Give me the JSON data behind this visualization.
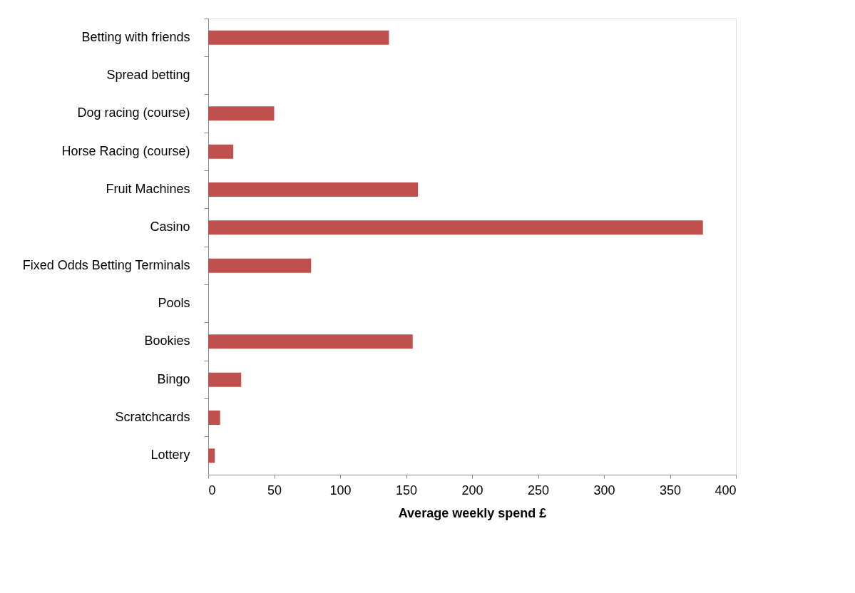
{
  "chart_data": {
    "type": "bar",
    "orientation": "horizontal",
    "xlabel": "Average weekly spend £",
    "categories": [
      "Betting with friends",
      "Spread betting",
      "Dog racing (course)",
      "Horse Racing (course)",
      "Fruit Machines",
      "Casino",
      "Fixed Odds Betting Terminals",
      "Pools",
      "Bookies",
      "Bingo",
      "Scratchcards",
      "Lottery"
    ],
    "values": [
      137,
      0,
      50,
      19,
      159,
      375,
      78,
      0,
      155,
      25,
      9,
      5
    ],
    "color": "#c0504d",
    "xlim": [
      0,
      400
    ],
    "xticks": [
      0,
      50,
      100,
      150,
      200,
      250,
      300,
      350,
      400
    ],
    "grid": false
  }
}
